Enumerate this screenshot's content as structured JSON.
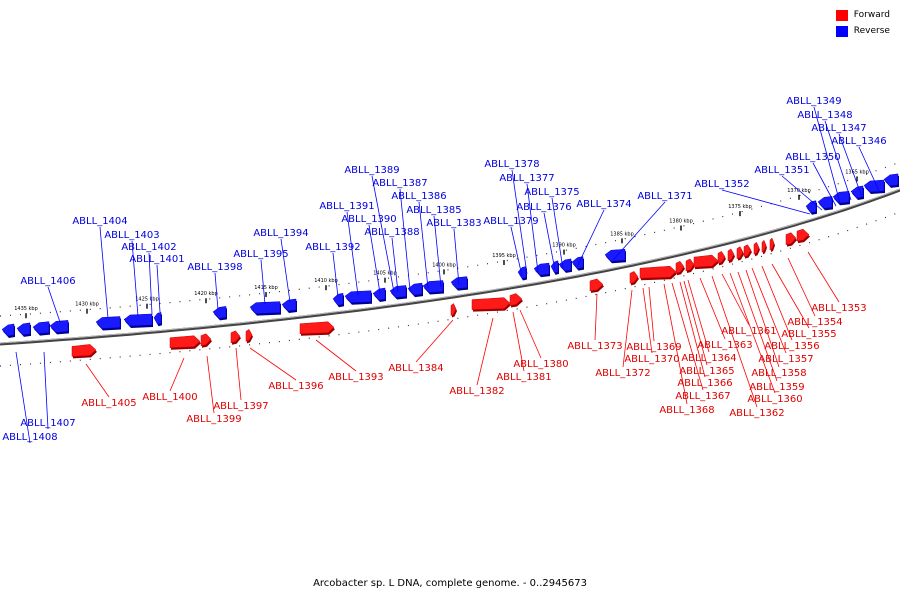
{
  "legend": {
    "forward_label": "Forward",
    "reverse_label": "Reverse",
    "forward_color": "#ff0000",
    "reverse_color": "#0000ff"
  },
  "caption": "Arcobacter sp. L DNA, complete genome. - 0..2945673",
  "genome": {
    "ticks": [
      {
        "label": "1435 kbp",
        "kbp": 1435
      },
      {
        "label": "1430 kbp",
        "kbp": 1430
      },
      {
        "label": "1425 kbp",
        "kbp": 1425
      },
      {
        "label": "1420 kbp",
        "kbp": 1420
      },
      {
        "label": "1415 kbp",
        "kbp": 1415
      },
      {
        "label": "1410 kbp",
        "kbp": 1410
      },
      {
        "label": "1405 kbp",
        "kbp": 1405
      },
      {
        "label": "1400 kbp",
        "kbp": 1400
      },
      {
        "label": "1395 kbp",
        "kbp": 1395
      },
      {
        "label": "1390 kbp",
        "kbp": 1390
      },
      {
        "label": "1385 kbp",
        "kbp": 1385
      },
      {
        "label": "1380 kbp",
        "kbp": 1380
      },
      {
        "label": "1375 kbp",
        "kbp": 1375
      },
      {
        "label": "1370 kbp",
        "kbp": 1370
      },
      {
        "label": "1365 kbp",
        "kbp": 1365
      }
    ],
    "reverse_genes": [
      "ABLL_1408",
      "ABLL_1407",
      "ABLL_1406",
      "ABLL_1404",
      "ABLL_1403",
      "ABLL_1402",
      "ABLL_1401",
      "ABLL_1398",
      "ABLL_1395",
      "ABLL_1394",
      "ABLL_1392",
      "ABLL_1391",
      "ABLL_1390",
      "ABLL_1389",
      "ABLL_1388",
      "ABLL_1387",
      "ABLL_1386",
      "ABLL_1385",
      "ABLL_1383",
      "ABLL_1379",
      "ABLL_1378",
      "ABLL_1377",
      "ABLL_1376",
      "ABLL_1375",
      "ABLL_1374",
      "ABLL_1371",
      "ABLL_1352",
      "ABLL_1351",
      "ABLL_1350",
      "ABLL_1349",
      "ABLL_1348",
      "ABLL_1347",
      "ABLL_1346"
    ],
    "forward_genes": [
      "ABLL_1405",
      "ABLL_1400",
      "ABLL_1399",
      "ABLL_1397",
      "ABLL_1396",
      "ABLL_1393",
      "ABLL_1384",
      "ABLL_1382",
      "ABLL_1381",
      "ABLL_1380",
      "ABLL_1373",
      "ABLL_1372",
      "ABLL_1370",
      "ABLL_1369",
      "ABLL_1368",
      "ABLL_1367",
      "ABLL_1366",
      "ABLL_1365",
      "ABLL_1364",
      "ABLL_1363",
      "ABLL_1362",
      "ABLL_1361",
      "ABLL_1360",
      "ABLL_1359",
      "ABLL_1358",
      "ABLL_1357",
      "ABLL_1356",
      "ABLL_1355",
      "ABLL_1354",
      "ABLL_1353"
    ]
  }
}
